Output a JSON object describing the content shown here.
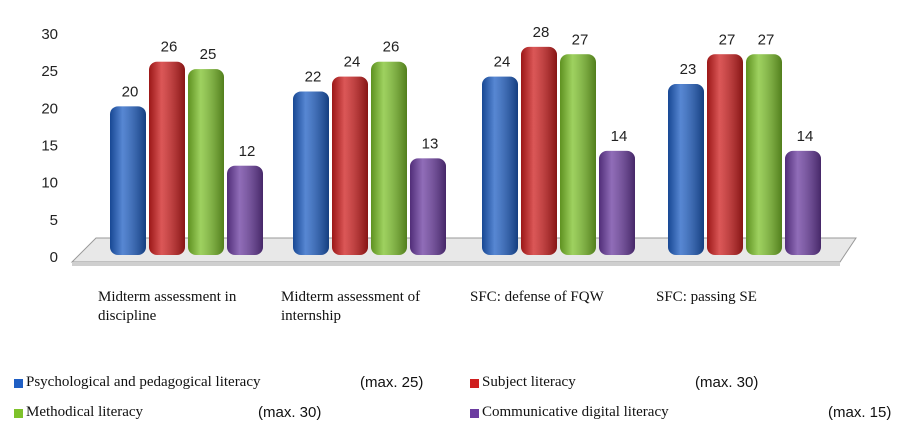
{
  "chart_data": {
    "type": "bar",
    "categories": [
      "Midterm assessment in discipline",
      "Midterm assessment of internship",
      "SFC: defense of FQW",
      "SFC: passing SE"
    ],
    "series": [
      {
        "name": "Psychological and pedagogical literacy",
        "note": "(max. 25)",
        "color": "#1f5fc4",
        "values": [
          20,
          22,
          24,
          23
        ]
      },
      {
        "name": "Subject literacy",
        "note": "(max. 30)",
        "color": "#cf1f1f",
        "values": [
          26,
          24,
          28,
          27
        ]
      },
      {
        "name": "Methodical literacy",
        "note": "(max. 30)",
        "color": "#7ec22b",
        "values": [
          25,
          26,
          27,
          27
        ]
      },
      {
        "name": "Communicative digital literacy",
        "note": "(max. 15)",
        "color": "#6b3ca0",
        "values": [
          12,
          13,
          14,
          14
        ]
      }
    ],
    "ylim": [
      0,
      30
    ],
    "yticks": [
      0,
      5,
      10,
      15,
      20,
      25,
      30
    ]
  }
}
